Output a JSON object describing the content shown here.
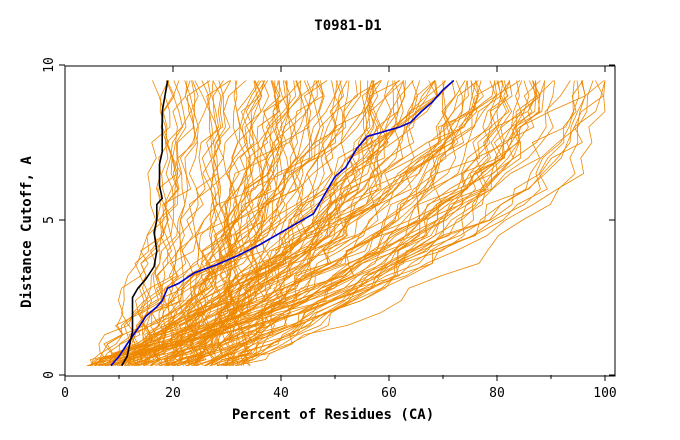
{
  "chart_data": {
    "type": "line",
    "title": "T0981-D1",
    "xlabel": "Percent of Residues (CA)",
    "ylabel": "Distance Cutoff, A",
    "xlim": [
      0,
      100
    ],
    "ylim": [
      0,
      10
    ],
    "x_ticks": [
      "0",
      "20",
      "40",
      "60",
      "80",
      "100"
    ],
    "y_ticks": [
      "0",
      "5",
      "10"
    ],
    "grid": false,
    "legend": "none",
    "colors": {
      "background_models": "#ee8800",
      "highlight_blue": "#0000cc",
      "highlight_black": "#000000",
      "axes": "#000000"
    },
    "background_series_count": 150,
    "series": [
      {
        "role": "highlight",
        "color": "#0000cc",
        "points": [
          [
            8.5,
            0.3
          ],
          [
            10,
            0.6
          ],
          [
            11.5,
            1.0
          ],
          [
            13.5,
            1.5
          ],
          [
            15,
            1.9
          ],
          [
            17,
            2.2
          ],
          [
            18,
            2.4
          ],
          [
            19,
            2.8
          ],
          [
            21,
            2.95
          ],
          [
            24,
            3.3
          ],
          [
            28,
            3.55
          ],
          [
            32,
            3.85
          ],
          [
            36,
            4.2
          ],
          [
            40,
            4.6
          ],
          [
            43,
            4.9
          ],
          [
            46,
            5.2
          ],
          [
            48,
            5.8
          ],
          [
            50,
            6.4
          ],
          [
            52,
            6.7
          ],
          [
            54,
            7.3
          ],
          [
            56,
            7.7
          ],
          [
            59,
            7.85
          ],
          [
            62,
            8.0
          ],
          [
            64,
            8.15
          ],
          [
            66,
            8.5
          ],
          [
            68,
            8.8
          ],
          [
            70,
            9.2
          ],
          [
            72,
            9.5
          ]
        ]
      },
      {
        "role": "highlight",
        "color": "#000000",
        "points": [
          [
            10.5,
            0.3
          ],
          [
            11.5,
            0.6
          ],
          [
            12,
            1.0
          ],
          [
            12.5,
            1.4
          ],
          [
            12.5,
            2.0
          ],
          [
            12.5,
            2.5
          ],
          [
            13.5,
            2.8
          ],
          [
            15,
            3.1
          ],
          [
            16.5,
            3.5
          ],
          [
            17,
            4.0
          ],
          [
            16.5,
            4.6
          ],
          [
            17,
            5.0
          ],
          [
            17,
            5.5
          ],
          [
            18,
            5.7
          ],
          [
            17.5,
            6.1
          ],
          [
            17.5,
            6.8
          ],
          [
            18,
            7.2
          ],
          [
            18,
            7.8
          ],
          [
            18,
            8.5
          ],
          [
            18.5,
            9.0
          ],
          [
            19,
            9.5
          ]
        ]
      }
    ]
  }
}
